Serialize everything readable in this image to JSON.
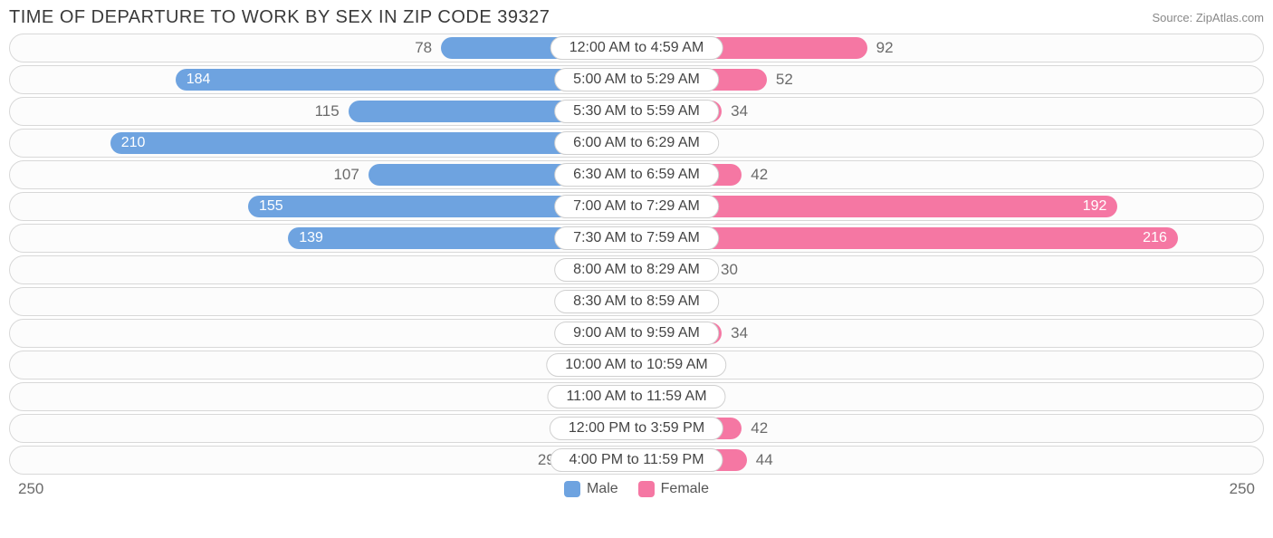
{
  "title": "TIME OF DEPARTURE TO WORK BY SEX IN ZIP CODE 39327",
  "source": "Source: ZipAtlas.com",
  "chart": {
    "type": "diverging-bar",
    "axis_max": 250,
    "min_bar_pct": 8,
    "left_label_threshold": 120,
    "right_label_threshold": 120,
    "colors": {
      "male": "#6ea3e0",
      "female": "#f577a3",
      "track_border": "#d8d8d8",
      "track_bg": "#fcfcfc",
      "text_muted": "#6b6b6b",
      "pill_bg": "#ffffff",
      "pill_border": "#d0d0d0"
    },
    "legend": {
      "male_label": "Male",
      "female_label": "Female"
    },
    "axis_labels": {
      "left": "250",
      "right": "250"
    },
    "rows": [
      {
        "category": "12:00 AM to 4:59 AM",
        "male": 78,
        "female": 92
      },
      {
        "category": "5:00 AM to 5:29 AM",
        "male": 184,
        "female": 52
      },
      {
        "category": "5:30 AM to 5:59 AM",
        "male": 115,
        "female": 34
      },
      {
        "category": "6:00 AM to 6:29 AM",
        "male": 210,
        "female": 0
      },
      {
        "category": "6:30 AM to 6:59 AM",
        "male": 107,
        "female": 42
      },
      {
        "category": "7:00 AM to 7:29 AM",
        "male": 155,
        "female": 192
      },
      {
        "category": "7:30 AM to 7:59 AM",
        "male": 139,
        "female": 216
      },
      {
        "category": "8:00 AM to 8:29 AM",
        "male": 9,
        "female": 30
      },
      {
        "category": "8:30 AM to 8:59 AM",
        "male": 0,
        "female": 0
      },
      {
        "category": "9:00 AM to 9:59 AM",
        "male": 0,
        "female": 34
      },
      {
        "category": "10:00 AM to 10:59 AM",
        "male": 0,
        "female": 10
      },
      {
        "category": "11:00 AM to 11:59 AM",
        "male": 0,
        "female": 10
      },
      {
        "category": "12:00 PM to 3:59 PM",
        "male": 17,
        "female": 42
      },
      {
        "category": "4:00 PM to 11:59 PM",
        "male": 29,
        "female": 44
      }
    ]
  }
}
